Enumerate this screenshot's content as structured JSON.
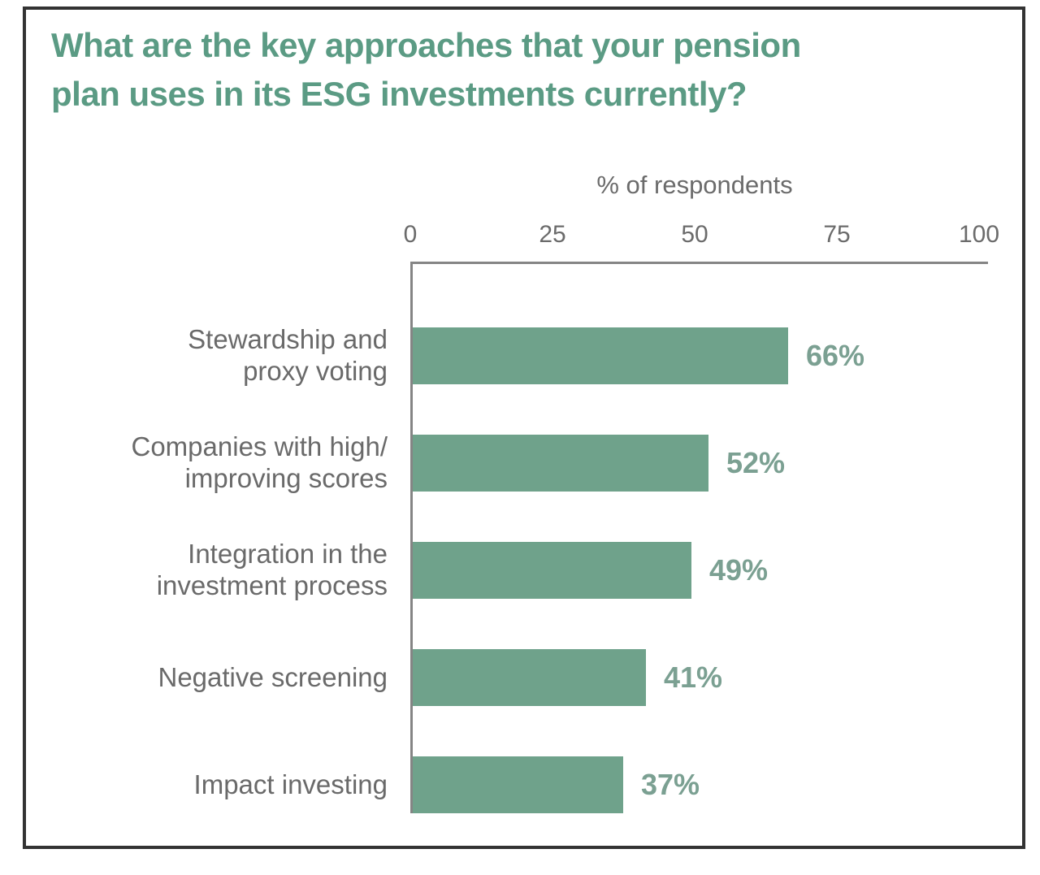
{
  "chart_data": {
    "type": "bar",
    "orientation": "horizontal",
    "title": "What are the key approaches that your pension plan uses in its ESG investments currently?",
    "title_lines": [
      "What are the key approaches that your pension",
      "plan uses in its ESG investments currently?"
    ],
    "axis_title": "% of respondents",
    "x_ticks": [
      0,
      25,
      50,
      75,
      100
    ],
    "xlim": [
      0,
      100
    ],
    "grid": false,
    "legend": false,
    "categories": [
      "Stewardship and proxy voting",
      "Companies with high/ improving scores",
      "Integration in the investment process",
      "Negative screening",
      "Impact investing"
    ],
    "category_lines": [
      [
        "Stewardship and",
        "proxy voting"
      ],
      [
        "Companies with high/",
        "improving scores"
      ],
      [
        "Integration in the",
        "investment process"
      ],
      [
        "Negative screening"
      ],
      [
        "Impact investing"
      ]
    ],
    "values": [
      66,
      52,
      49,
      41,
      37
    ],
    "value_labels": [
      "66%",
      "52%",
      "49%",
      "41%",
      "37%"
    ],
    "colors": {
      "bar": "#6fa28b",
      "title": "#5b9b84",
      "value_label": "#7ba092",
      "category_label": "#6a6a6a",
      "axis_text": "#6b6b6b",
      "axis_line": "#858585",
      "frame_border": "#333333"
    }
  }
}
